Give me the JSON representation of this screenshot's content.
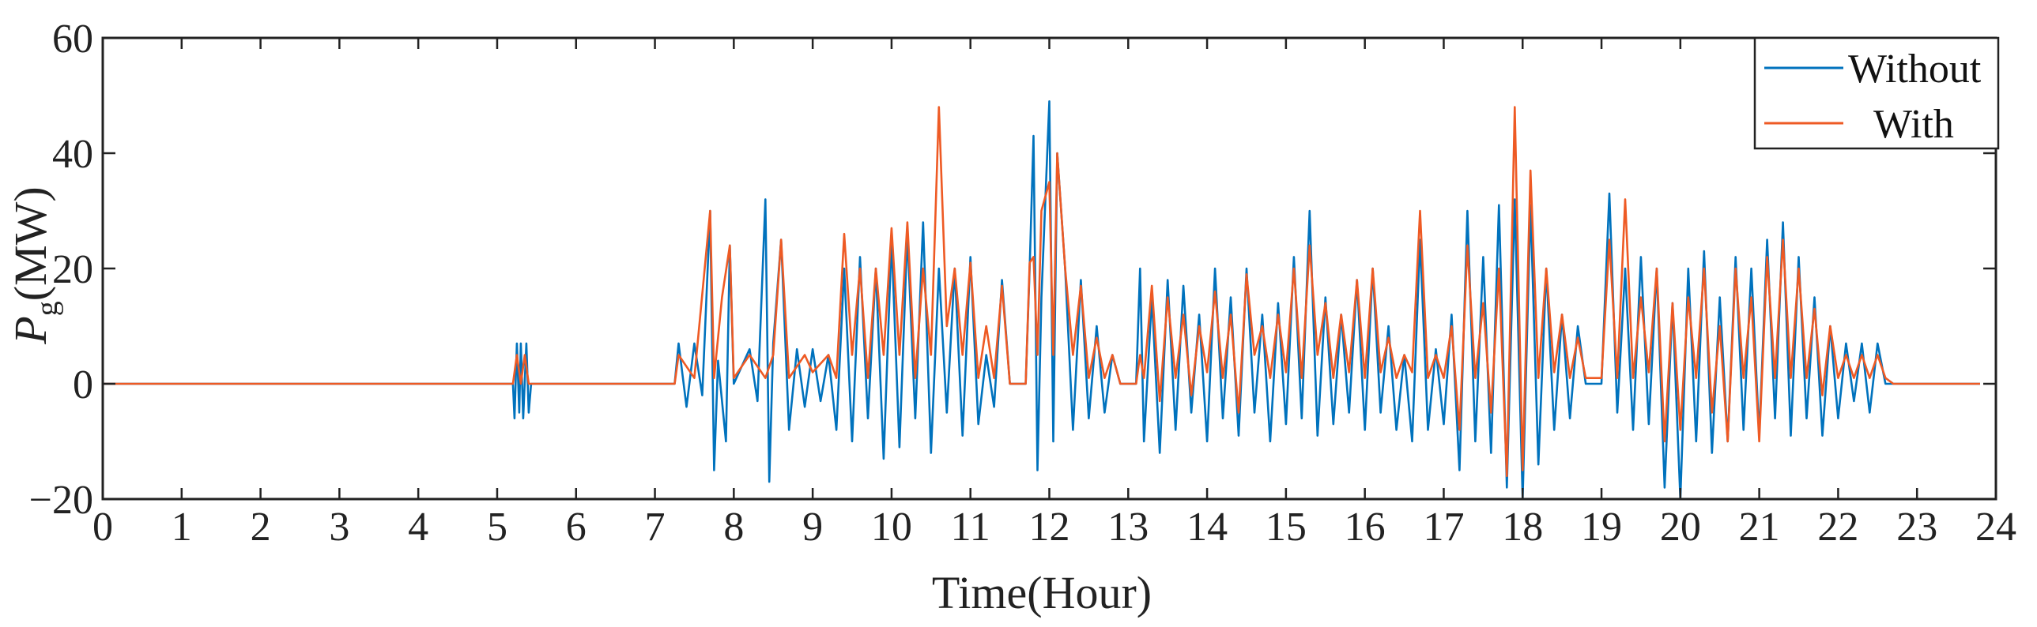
{
  "chart_data": {
    "type": "line",
    "xlabel": "Time(Hour)",
    "ylabel": "P",
    "ylabel_sub": "g",
    "ylabel_unit": "(MW)",
    "xlim": [
      0,
      24
    ],
    "ylim": [
      -20,
      60
    ],
    "x_ticks": [
      "0",
      "1",
      "2",
      "3",
      "4",
      "5",
      "6",
      "7",
      "8",
      "9",
      "10",
      "11",
      "12",
      "13",
      "14",
      "15",
      "16",
      "17",
      "18",
      "19",
      "20",
      "21",
      "22",
      "23",
      "24"
    ],
    "y_ticks": [
      "60",
      "40",
      "20",
      "0",
      "−20"
    ],
    "y_tick_values": [
      60,
      40,
      20,
      0,
      -20
    ],
    "grid": false,
    "legend_position": "top-right",
    "series": [
      {
        "name": "Without",
        "color": "#0072BD",
        "points": [
          [
            0,
            0
          ],
          [
            5.2,
            0
          ],
          [
            5.22,
            -6
          ],
          [
            5.25,
            7
          ],
          [
            5.28,
            -5
          ],
          [
            5.3,
            7
          ],
          [
            5.33,
            -6
          ],
          [
            5.37,
            7
          ],
          [
            5.4,
            -5
          ],
          [
            5.43,
            0
          ],
          [
            7.25,
            0
          ],
          [
            7.3,
            7
          ],
          [
            7.4,
            -4
          ],
          [
            7.5,
            7
          ],
          [
            7.6,
            -2
          ],
          [
            7.7,
            30
          ],
          [
            7.75,
            -15
          ],
          [
            7.8,
            4
          ],
          [
            7.9,
            -10
          ],
          [
            7.95,
            24
          ],
          [
            8.0,
            0
          ],
          [
            8.2,
            6
          ],
          [
            8.3,
            -3
          ],
          [
            8.4,
            32
          ],
          [
            8.45,
            -17
          ],
          [
            8.5,
            7
          ],
          [
            8.6,
            25
          ],
          [
            8.7,
            -8
          ],
          [
            8.8,
            6
          ],
          [
            8.9,
            -4
          ],
          [
            9.0,
            6
          ],
          [
            9.1,
            -3
          ],
          [
            9.2,
            5
          ],
          [
            9.3,
            -8
          ],
          [
            9.4,
            20
          ],
          [
            9.5,
            -10
          ],
          [
            9.6,
            22
          ],
          [
            9.7,
            -6
          ],
          [
            9.8,
            20
          ],
          [
            9.9,
            -13
          ],
          [
            10.0,
            25
          ],
          [
            10.1,
            -11
          ],
          [
            10.2,
            26
          ],
          [
            10.3,
            -6
          ],
          [
            10.4,
            28
          ],
          [
            10.5,
            -12
          ],
          [
            10.6,
            20
          ],
          [
            10.7,
            -5
          ],
          [
            10.8,
            20
          ],
          [
            10.9,
            -9
          ],
          [
            11.0,
            22
          ],
          [
            11.1,
            -7
          ],
          [
            11.2,
            5
          ],
          [
            11.3,
            -4
          ],
          [
            11.4,
            18
          ],
          [
            11.5,
            0
          ],
          [
            11.7,
            0
          ],
          [
            11.75,
            20
          ],
          [
            11.8,
            43
          ],
          [
            11.85,
            -15
          ],
          [
            11.9,
            15
          ],
          [
            12.0,
            49
          ],
          [
            12.05,
            -10
          ],
          [
            12.1,
            40
          ],
          [
            12.2,
            20
          ],
          [
            12.3,
            -8
          ],
          [
            12.4,
            18
          ],
          [
            12.5,
            -6
          ],
          [
            12.6,
            10
          ],
          [
            12.7,
            -5
          ],
          [
            12.8,
            5
          ],
          [
            12.9,
            0
          ],
          [
            13.1,
            0
          ],
          [
            13.15,
            20
          ],
          [
            13.2,
            -10
          ],
          [
            13.3,
            15
          ],
          [
            13.4,
            -12
          ],
          [
            13.5,
            18
          ],
          [
            13.6,
            -8
          ],
          [
            13.7,
            17
          ],
          [
            13.8,
            -5
          ],
          [
            13.9,
            12
          ],
          [
            14.0,
            -10
          ],
          [
            14.1,
            20
          ],
          [
            14.2,
            -6
          ],
          [
            14.3,
            15
          ],
          [
            14.4,
            -9
          ],
          [
            14.5,
            20
          ],
          [
            14.6,
            -5
          ],
          [
            14.7,
            12
          ],
          [
            14.8,
            -10
          ],
          [
            14.9,
            14
          ],
          [
            15.0,
            -7
          ],
          [
            15.1,
            22
          ],
          [
            15.2,
            -6
          ],
          [
            15.3,
            30
          ],
          [
            15.4,
            -9
          ],
          [
            15.5,
            15
          ],
          [
            15.6,
            -7
          ],
          [
            15.7,
            12
          ],
          [
            15.8,
            -5
          ],
          [
            15.9,
            18
          ],
          [
            16.0,
            -8
          ],
          [
            16.1,
            20
          ],
          [
            16.2,
            -5
          ],
          [
            16.3,
            10
          ],
          [
            16.4,
            -8
          ],
          [
            16.5,
            5
          ],
          [
            16.6,
            -10
          ],
          [
            16.7,
            25
          ],
          [
            16.8,
            -8
          ],
          [
            16.9,
            6
          ],
          [
            17.0,
            -7
          ],
          [
            17.1,
            12
          ],
          [
            17.2,
            -15
          ],
          [
            17.3,
            30
          ],
          [
            17.4,
            -10
          ],
          [
            17.5,
            22
          ],
          [
            17.6,
            -12
          ],
          [
            17.7,
            31
          ],
          [
            17.8,
            -18
          ],
          [
            17.9,
            32
          ],
          [
            18.0,
            -20
          ],
          [
            18.1,
            31
          ],
          [
            18.2,
            -14
          ],
          [
            18.3,
            20
          ],
          [
            18.4,
            -8
          ],
          [
            18.5,
            12
          ],
          [
            18.6,
            -6
          ],
          [
            18.7,
            10
          ],
          [
            18.8,
            0
          ],
          [
            19.0,
            0
          ],
          [
            19.1,
            33
          ],
          [
            19.2,
            -5
          ],
          [
            19.3,
            20
          ],
          [
            19.4,
            -8
          ],
          [
            19.5,
            22
          ],
          [
            19.6,
            -7
          ],
          [
            19.7,
            20
          ],
          [
            19.8,
            -18
          ],
          [
            19.9,
            14
          ],
          [
            20.0,
            -20
          ],
          [
            20.1,
            20
          ],
          [
            20.2,
            -10
          ],
          [
            20.3,
            23
          ],
          [
            20.4,
            -12
          ],
          [
            20.5,
            15
          ],
          [
            20.6,
            -10
          ],
          [
            20.7,
            22
          ],
          [
            20.8,
            -8
          ],
          [
            20.9,
            20
          ],
          [
            21.0,
            -9
          ],
          [
            21.1,
            25
          ],
          [
            21.2,
            -6
          ],
          [
            21.3,
            28
          ],
          [
            21.4,
            -9
          ],
          [
            21.5,
            22
          ],
          [
            21.6,
            -6
          ],
          [
            21.7,
            15
          ],
          [
            21.8,
            -9
          ],
          [
            21.9,
            10
          ],
          [
            22.0,
            -6
          ],
          [
            22.1,
            7
          ],
          [
            22.2,
            -3
          ],
          [
            22.3,
            7
          ],
          [
            22.4,
            -5
          ],
          [
            22.5,
            7
          ],
          [
            22.6,
            0
          ],
          [
            23.8,
            0
          ]
        ]
      },
      {
        "name": "With",
        "color": "#EE5A24",
        "points": [
          [
            0,
            0
          ],
          [
            5.2,
            0
          ],
          [
            5.25,
            5
          ],
          [
            5.3,
            0
          ],
          [
            5.35,
            5
          ],
          [
            5.4,
            0
          ],
          [
            7.25,
            0
          ],
          [
            7.3,
            5
          ],
          [
            7.5,
            1
          ],
          [
            7.7,
            30
          ],
          [
            7.75,
            1
          ],
          [
            7.85,
            15
          ],
          [
            7.95,
            24
          ],
          [
            8.0,
            1
          ],
          [
            8.2,
            5
          ],
          [
            8.4,
            1
          ],
          [
            8.5,
            5
          ],
          [
            8.6,
            25
          ],
          [
            8.7,
            1
          ],
          [
            8.9,
            5
          ],
          [
            9.0,
            2
          ],
          [
            9.2,
            5
          ],
          [
            9.3,
            1
          ],
          [
            9.4,
            26
          ],
          [
            9.5,
            5
          ],
          [
            9.6,
            20
          ],
          [
            9.7,
            1
          ],
          [
            9.8,
            20
          ],
          [
            9.9,
            5
          ],
          [
            10.0,
            27
          ],
          [
            10.1,
            5
          ],
          [
            10.2,
            28
          ],
          [
            10.3,
            1
          ],
          [
            10.4,
            20
          ],
          [
            10.5,
            5
          ],
          [
            10.6,
            48
          ],
          [
            10.7,
            10
          ],
          [
            10.8,
            20
          ],
          [
            10.9,
            5
          ],
          [
            11.0,
            21
          ],
          [
            11.1,
            1
          ],
          [
            11.2,
            10
          ],
          [
            11.3,
            1
          ],
          [
            11.4,
            17
          ],
          [
            11.5,
            0
          ],
          [
            11.7,
            0
          ],
          [
            11.75,
            21
          ],
          [
            11.8,
            22
          ],
          [
            11.85,
            5
          ],
          [
            11.9,
            30
          ],
          [
            12.0,
            35
          ],
          [
            12.05,
            5
          ],
          [
            12.1,
            40
          ],
          [
            12.2,
            20
          ],
          [
            12.3,
            5
          ],
          [
            12.4,
            17
          ],
          [
            12.5,
            1
          ],
          [
            12.6,
            8
          ],
          [
            12.7,
            1
          ],
          [
            12.8,
            5
          ],
          [
            12.9,
            0
          ],
          [
            13.1,
            0
          ],
          [
            13.15,
            5
          ],
          [
            13.2,
            1
          ],
          [
            13.3,
            17
          ],
          [
            13.4,
            -3
          ],
          [
            13.5,
            15
          ],
          [
            13.6,
            1
          ],
          [
            13.7,
            12
          ],
          [
            13.8,
            -2
          ],
          [
            13.9,
            10
          ],
          [
            14.0,
            2
          ],
          [
            14.1,
            16
          ],
          [
            14.2,
            1
          ],
          [
            14.3,
            12
          ],
          [
            14.4,
            -5
          ],
          [
            14.5,
            19
          ],
          [
            14.6,
            5
          ],
          [
            14.7,
            10
          ],
          [
            14.8,
            1
          ],
          [
            14.9,
            12
          ],
          [
            15.0,
            2
          ],
          [
            15.1,
            20
          ],
          [
            15.2,
            1
          ],
          [
            15.3,
            24
          ],
          [
            15.4,
            5
          ],
          [
            15.5,
            14
          ],
          [
            15.6,
            1
          ],
          [
            15.7,
            12
          ],
          [
            15.8,
            2
          ],
          [
            15.9,
            18
          ],
          [
            16.0,
            1
          ],
          [
            16.1,
            20
          ],
          [
            16.2,
            2
          ],
          [
            16.3,
            8
          ],
          [
            16.4,
            1
          ],
          [
            16.5,
            5
          ],
          [
            16.6,
            2
          ],
          [
            16.7,
            30
          ],
          [
            16.8,
            1
          ],
          [
            16.9,
            5
          ],
          [
            17.0,
            1
          ],
          [
            17.1,
            10
          ],
          [
            17.2,
            -8
          ],
          [
            17.3,
            24
          ],
          [
            17.4,
            1
          ],
          [
            17.5,
            14
          ],
          [
            17.6,
            -5
          ],
          [
            17.7,
            20
          ],
          [
            17.8,
            -16
          ],
          [
            17.9,
            48
          ],
          [
            18.0,
            -15
          ],
          [
            18.1,
            37
          ],
          [
            18.2,
            1
          ],
          [
            18.3,
            20
          ],
          [
            18.4,
            2
          ],
          [
            18.5,
            12
          ],
          [
            18.6,
            1
          ],
          [
            18.7,
            8
          ],
          [
            18.8,
            1
          ],
          [
            19.0,
            1
          ],
          [
            19.1,
            25
          ],
          [
            19.2,
            1
          ],
          [
            19.3,
            32
          ],
          [
            19.4,
            1
          ],
          [
            19.5,
            15
          ],
          [
            19.6,
            2
          ],
          [
            19.7,
            20
          ],
          [
            19.8,
            -10
          ],
          [
            19.9,
            14
          ],
          [
            20.0,
            -8
          ],
          [
            20.1,
            15
          ],
          [
            20.2,
            1
          ],
          [
            20.3,
            20
          ],
          [
            20.4,
            -5
          ],
          [
            20.5,
            10
          ],
          [
            20.6,
            -10
          ],
          [
            20.7,
            20
          ],
          [
            20.8,
            1
          ],
          [
            20.9,
            15
          ],
          [
            21.0,
            -10
          ],
          [
            21.1,
            22
          ],
          [
            21.2,
            1
          ],
          [
            21.3,
            25
          ],
          [
            21.4,
            1
          ],
          [
            21.5,
            20
          ],
          [
            21.6,
            1
          ],
          [
            21.7,
            13
          ],
          [
            21.8,
            -2
          ],
          [
            21.9,
            10
          ],
          [
            22.0,
            1
          ],
          [
            22.1,
            5
          ],
          [
            22.2,
            1
          ],
          [
            22.3,
            5
          ],
          [
            22.4,
            1
          ],
          [
            22.5,
            5
          ],
          [
            22.6,
            1
          ],
          [
            22.7,
            0
          ],
          [
            23.8,
            0
          ]
        ]
      }
    ]
  }
}
